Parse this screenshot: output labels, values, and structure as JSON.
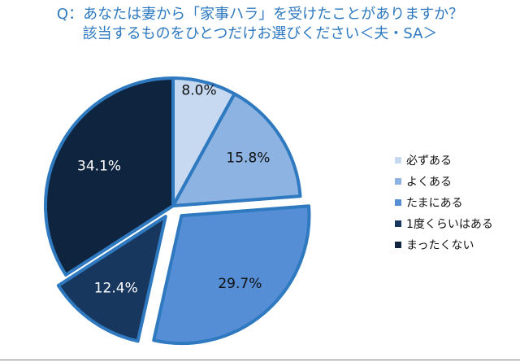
{
  "title_lines": [
    "Q：あなたは妻から「家事ハラ」を受けたことがありますか？",
    "該当するものをひとつだけお選びください＜夫・SA＞"
  ],
  "chart_data": {
    "type": "pie",
    "categories": [
      "必ずある",
      "よくある",
      "たまにある",
      "1度くらいはある",
      "まったくない"
    ],
    "values": [
      8.0,
      15.8,
      29.7,
      12.4,
      34.1
    ],
    "labels": [
      "8.0%",
      "15.8%",
      "29.7%",
      "12.4%",
      "34.1%"
    ],
    "colors": [
      "#c6d9f1",
      "#8db3e2",
      "#558ed5",
      "#17375e",
      "#0f243e"
    ],
    "exploded": [
      "たまにある",
      "1度くらいはある"
    ],
    "edge_color": "#2e79bf",
    "legend_position": "right"
  }
}
